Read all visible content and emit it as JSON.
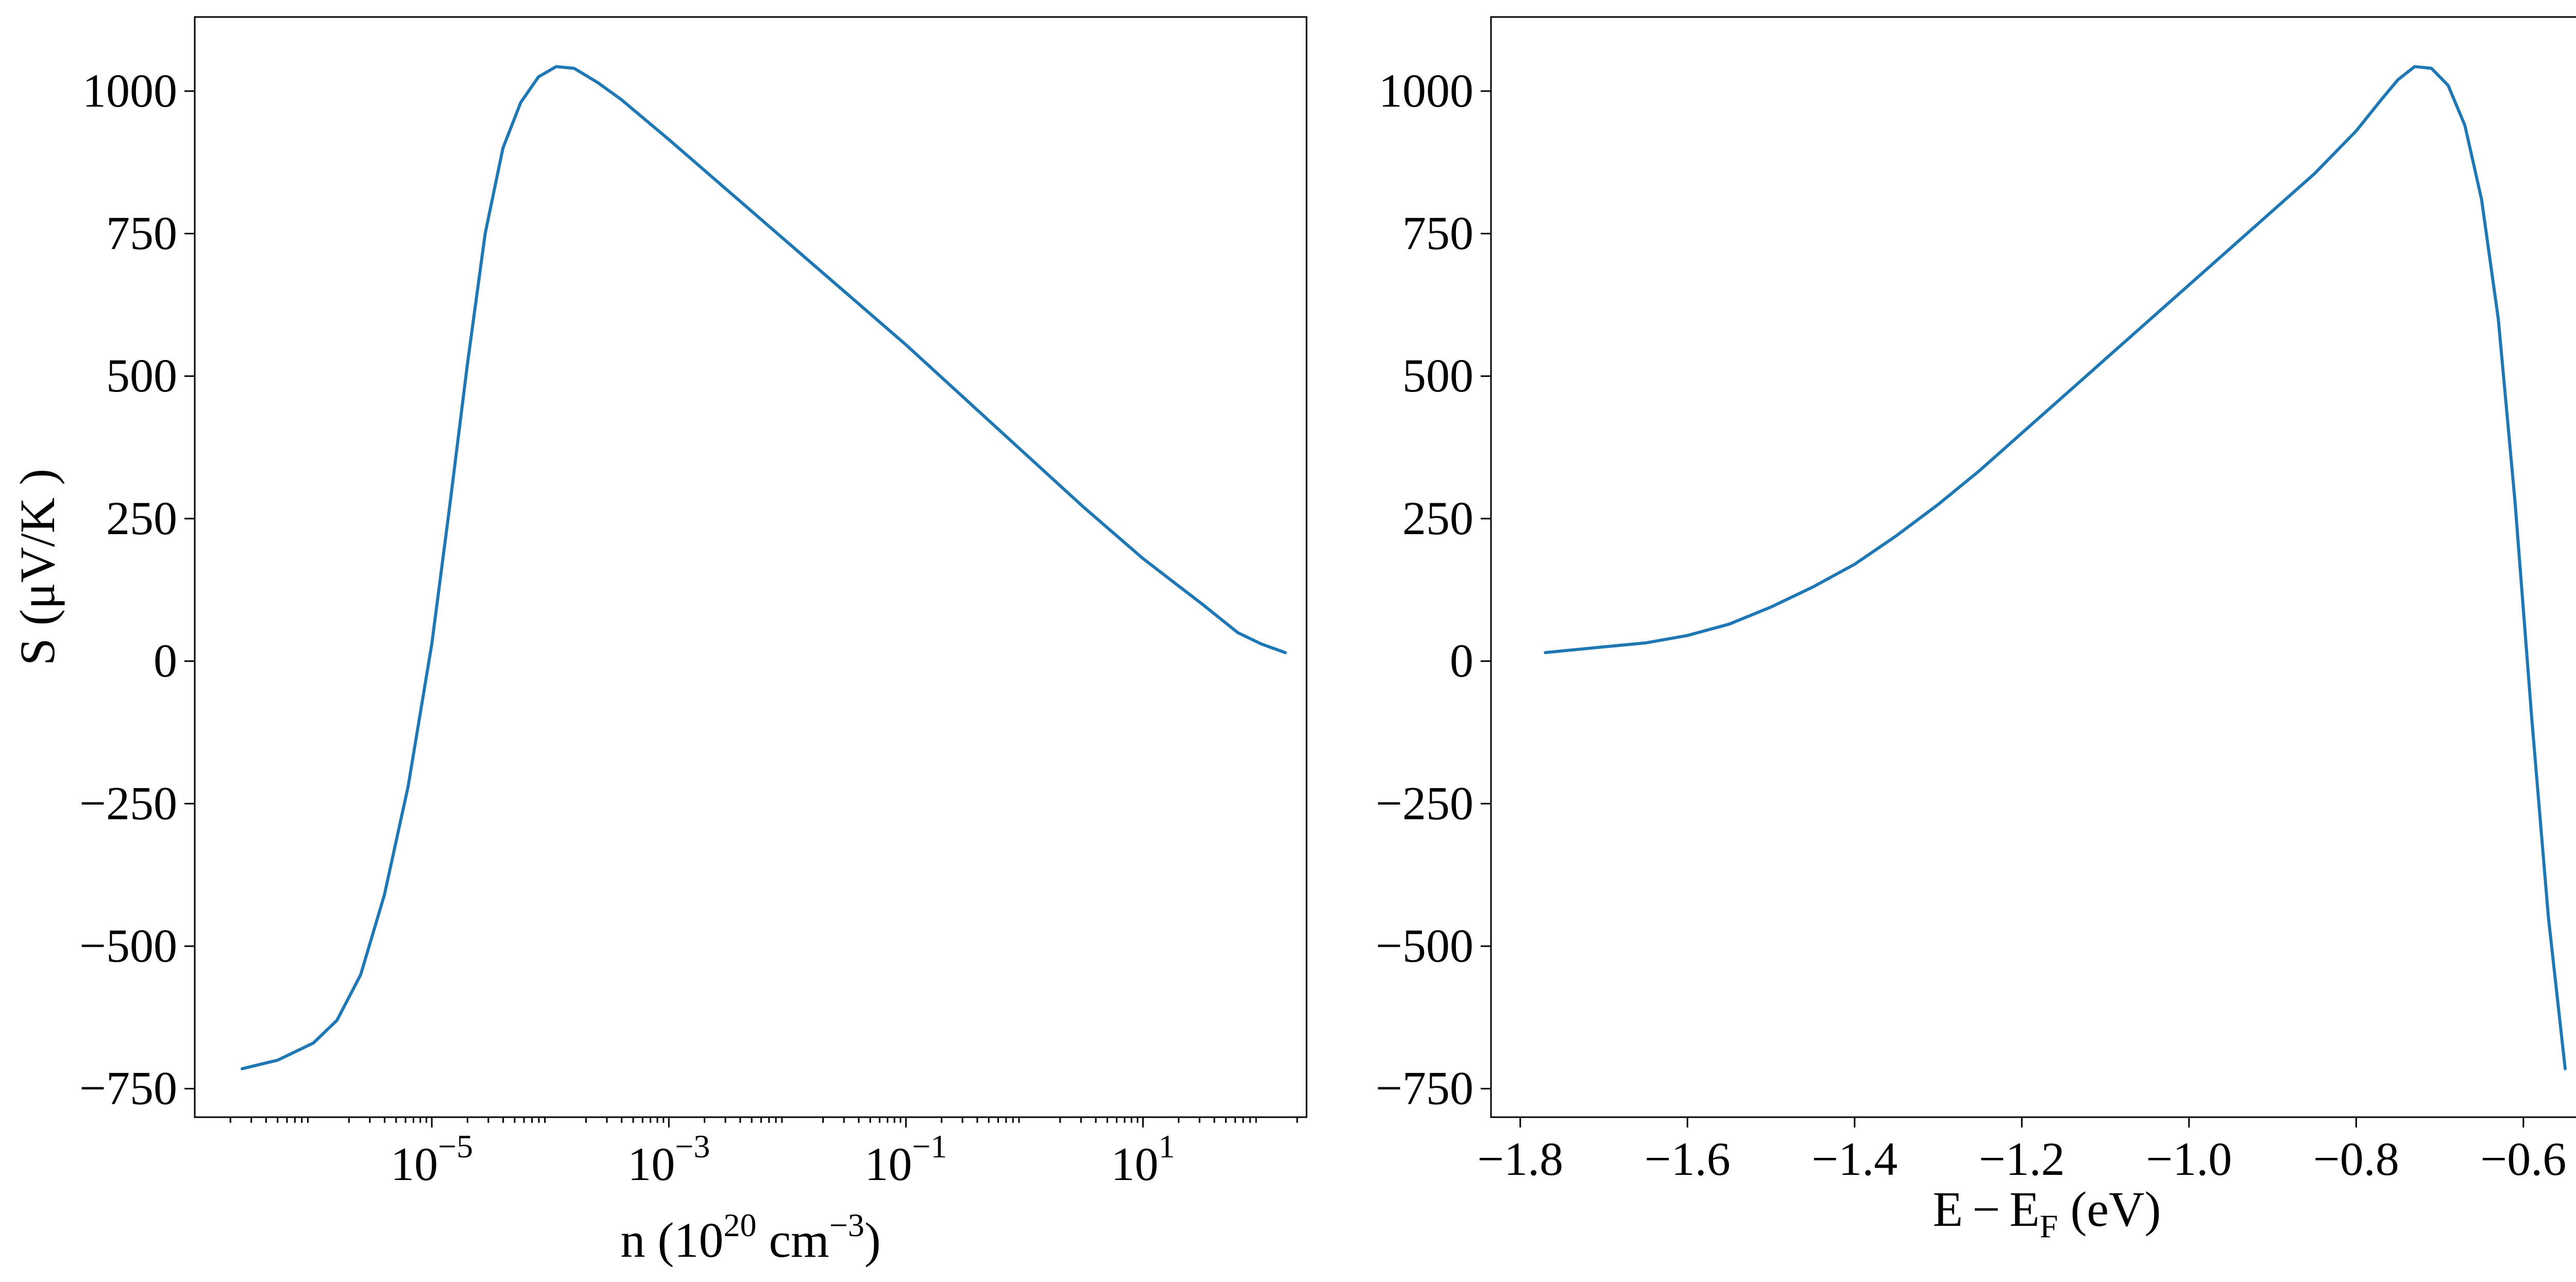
{
  "colors": {
    "series": "#1f77b4",
    "axes": "#000000",
    "background": "#ffffff"
  },
  "chart_data": [
    {
      "type": "line",
      "xscale": "log",
      "xlim_log10": [
        -7.0,
        2.38
      ],
      "ylim": [
        -800,
        1130
      ],
      "xlabel": {
        "base": "n (10",
        "sup1": "20",
        "mid": " cm",
        "sup2": "−3",
        "end": ")"
      },
      "ylabel": "S (μV/K )",
      "yticks": [
        -750,
        -500,
        -250,
        0,
        250,
        500,
        750,
        1000
      ],
      "yticklabels": [
        "−750",
        "−500",
        "−250",
        "0",
        "250",
        "500",
        "750",
        "1000"
      ],
      "xticks_log10": [
        -5,
        -3,
        -1,
        1
      ],
      "xticklabels": [
        {
          "base": "10",
          "exp": "−5"
        },
        {
          "base": "10",
          "exp": "−3"
        },
        {
          "base": "10",
          "exp": "−1"
        },
        {
          "base": "10",
          "exp": "1"
        }
      ],
      "grid": false,
      "series": [
        {
          "x_log10": [
            -6.6,
            -6.3,
            -6.0,
            -5.8,
            -5.6,
            -5.4,
            -5.2,
            -5.0,
            -4.85,
            -4.7,
            -4.55,
            -4.4,
            -4.25,
            -4.1,
            -3.95,
            -3.8,
            -3.6,
            -3.4,
            -3.2,
            -3.0,
            -2.5,
            -2.0,
            -1.5,
            -1.0,
            -0.5,
            0.0,
            0.5,
            1.0,
            1.5,
            1.8,
            2.0,
            2.2
          ],
          "y": [
            -715,
            -700,
            -670,
            -630,
            -550,
            -410,
            -220,
            30,
            270,
            520,
            750,
            900,
            980,
            1025,
            1043,
            1040,
            1015,
            985,
            950,
            915,
            825,
            735,
            645,
            555,
            460,
            365,
            270,
            180,
            100,
            50,
            30,
            15
          ]
        }
      ]
    },
    {
      "type": "line",
      "xlim": [
        -1.835,
        -0.505
      ],
      "ylim": [
        -800,
        1130
      ],
      "xlabel": {
        "a": "E",
        "minus": "−",
        "b": "E",
        "sub": "F",
        "end": " (eV)"
      },
      "ylabel": "",
      "yticks": [
        -750,
        -500,
        -250,
        0,
        250,
        500,
        750,
        1000
      ],
      "yticklabels": [
        "−750",
        "−500",
        "−250",
        "0",
        "250",
        "500",
        "750",
        "1000"
      ],
      "xticks": [
        -1.8,
        -1.6,
        -1.4,
        -1.2,
        -1.0,
        -0.8,
        -0.6
      ],
      "xticklabels": [
        "−1.8",
        "−1.6",
        "−1.4",
        "−1.2",
        "−1.0",
        "−0.8",
        "−0.6"
      ],
      "grid": false,
      "series": [
        {
          "x": [
            -1.77,
            -1.7,
            -1.65,
            -1.6,
            -1.55,
            -1.5,
            -1.45,
            -1.4,
            -1.35,
            -1.3,
            -1.25,
            -1.2,
            -1.15,
            -1.1,
            -1.05,
            -1.0,
            -0.95,
            -0.9,
            -0.85,
            -0.8,
            -0.77,
            -0.75,
            -0.73,
            -0.71,
            -0.69,
            -0.67,
            -0.65,
            -0.63,
            -0.61,
            -0.59,
            -0.57,
            -0.55
          ],
          "y": [
            15,
            25,
            32,
            45,
            65,
            95,
            130,
            170,
            220,
            275,
            335,
            400,
            465,
            530,
            595,
            660,
            725,
            790,
            855,
            930,
            985,
            1020,
            1043,
            1040,
            1010,
            940,
            810,
            600,
            280,
            -100,
            -450,
            -715
          ]
        }
      ]
    }
  ]
}
